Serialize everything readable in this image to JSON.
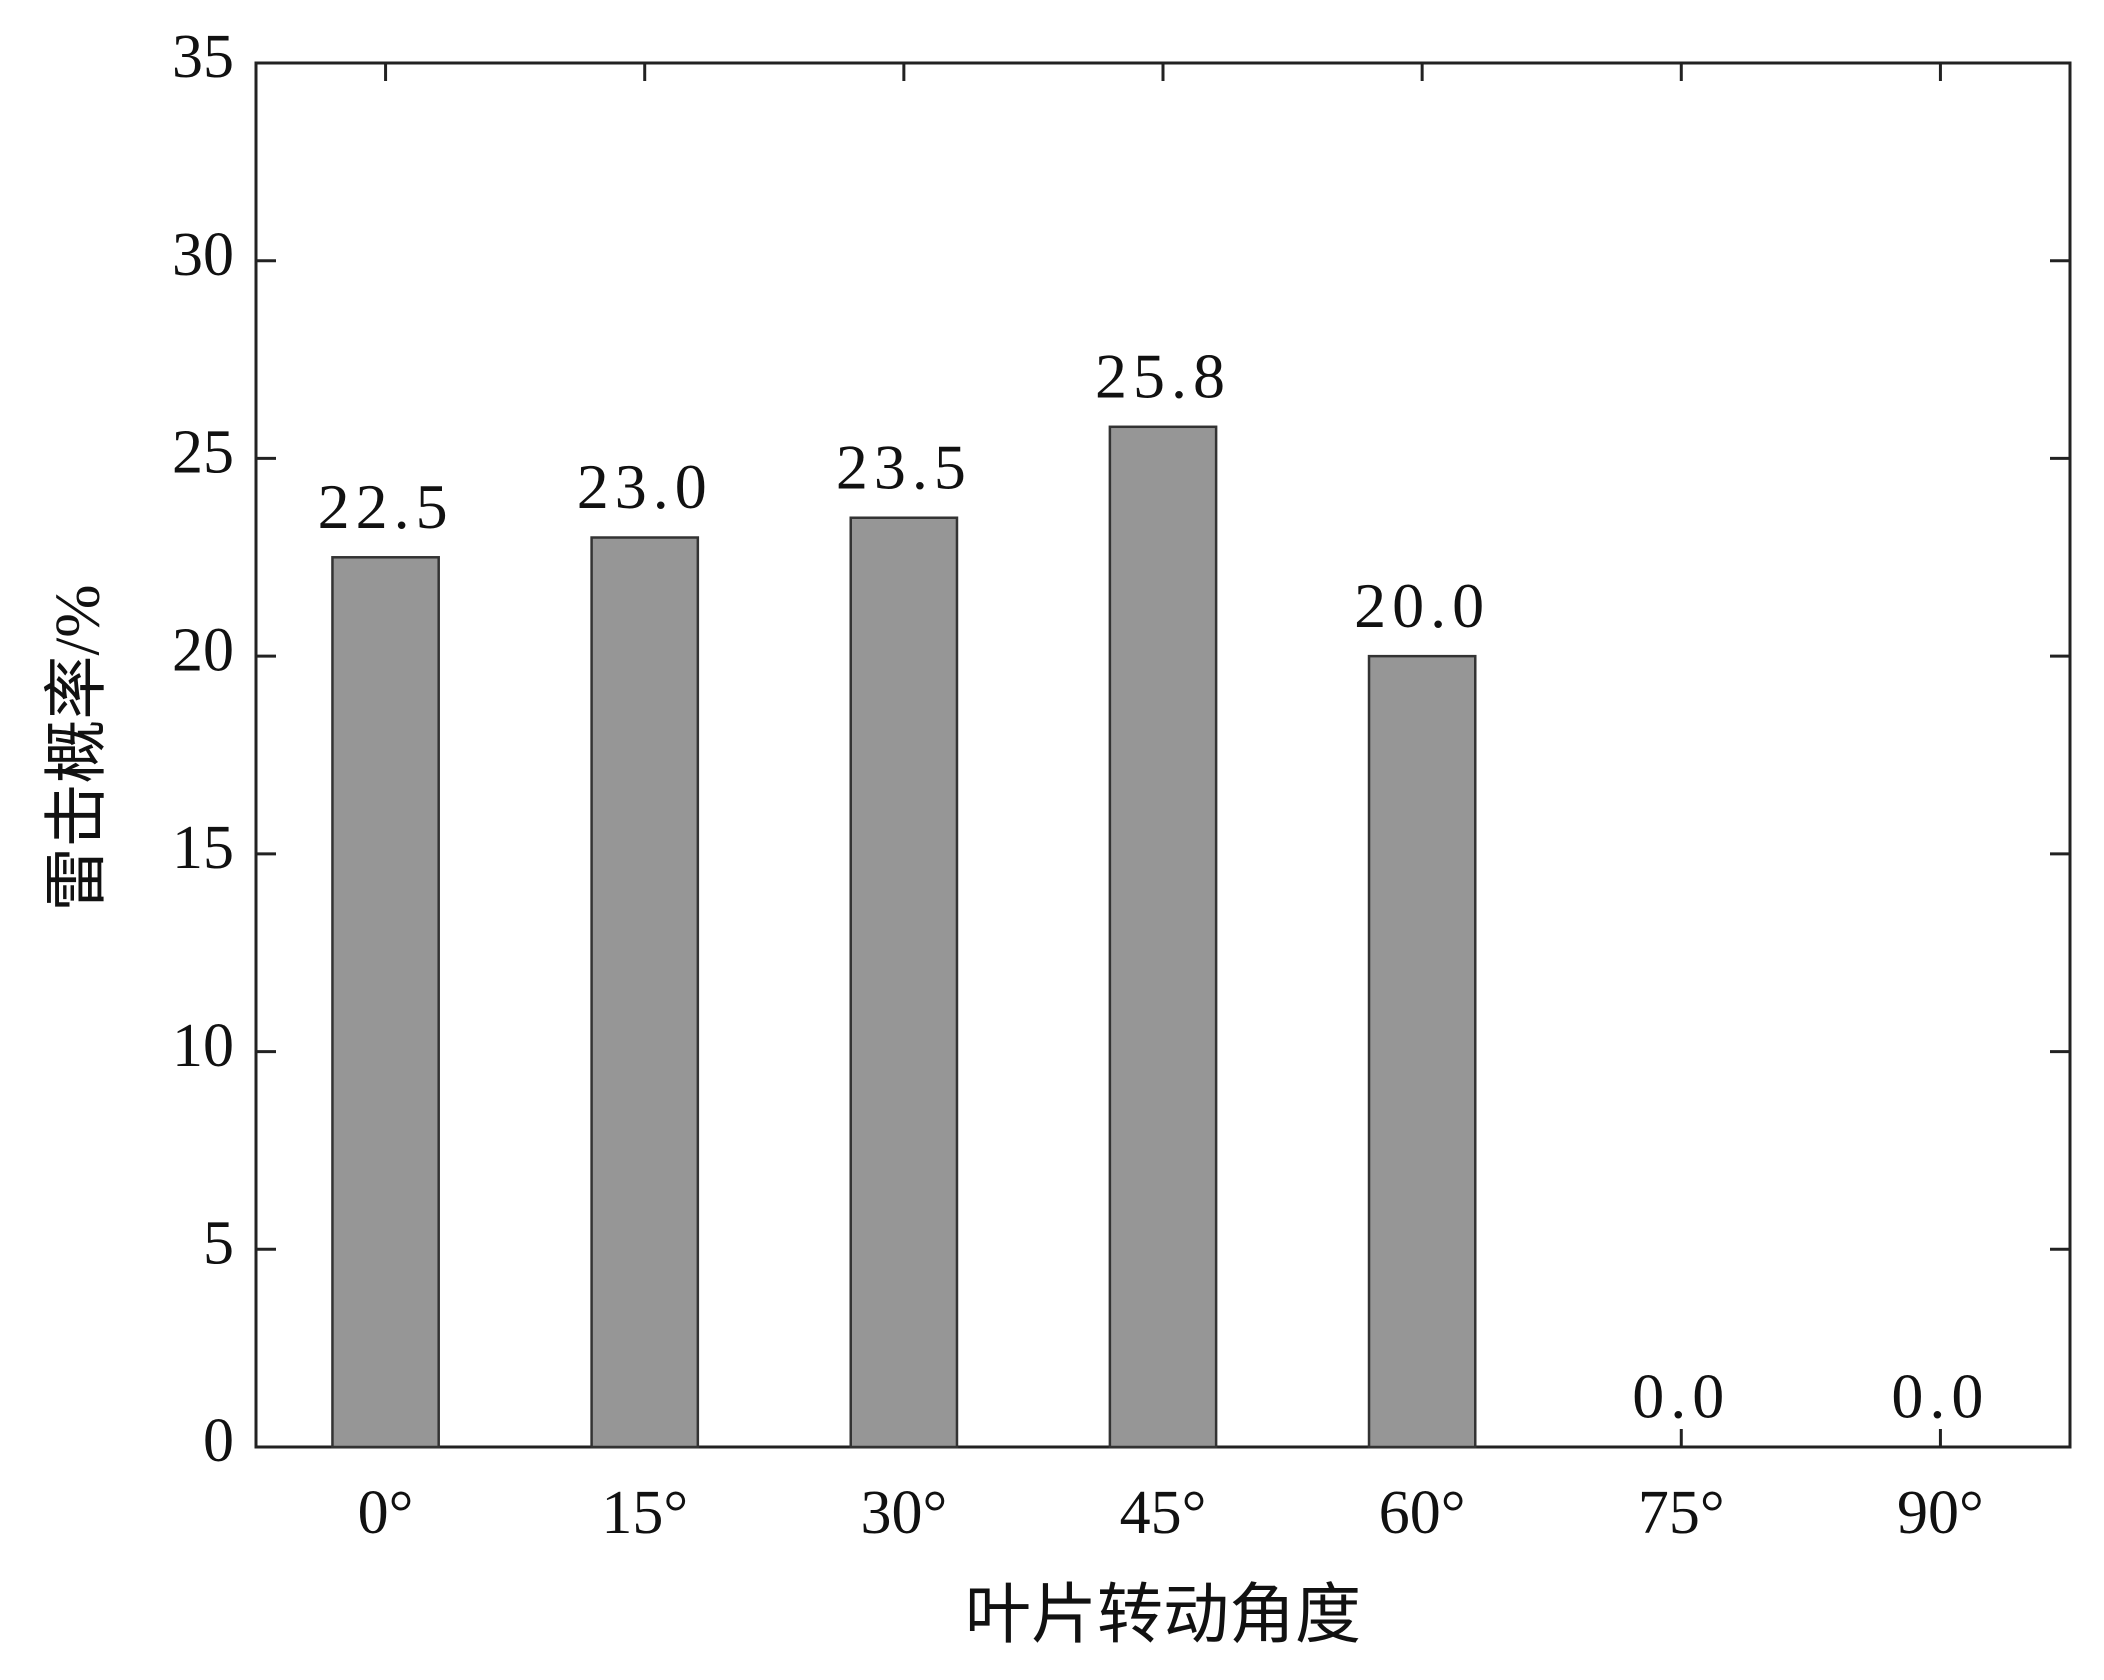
{
  "chart_data": {
    "type": "bar",
    "categories": [
      "0°",
      "15°",
      "30°",
      "45°",
      "60°",
      "75°",
      "90°"
    ],
    "values": [
      22.5,
      23.0,
      23.5,
      25.8,
      20.0,
      0.0,
      0.0
    ],
    "value_labels": [
      "22.5",
      "23.0",
      "23.5",
      "25.8",
      "20.0",
      "0.0",
      "0.0"
    ],
    "color": "#969696",
    "xlabel": "叶片转动角度",
    "ylabel": "雷击概率/%",
    "ylim": [
      0,
      35
    ],
    "yticks": [
      0,
      5,
      10,
      15,
      20,
      25,
      30,
      35
    ],
    "grid": false
  }
}
